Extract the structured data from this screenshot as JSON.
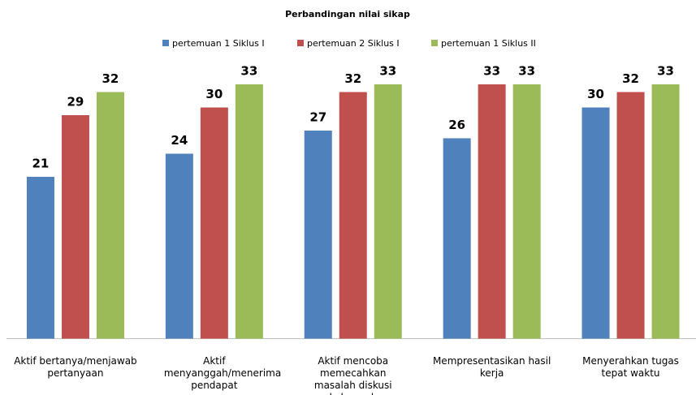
{
  "chart_data": {
    "type": "bar",
    "title": "Perbandingan nilai sikap",
    "categories": [
      "Aktif bertanya/menjawab pertanyaan",
      "Aktif menyanggah/menerima pendapat",
      "Aktif mencoba memecahkan masalah diskusi kelompok",
      "Mempresentasikan hasil kerja",
      "Menyerahkan tugas tepat waktu"
    ],
    "series": [
      {
        "name": "pertemuan 1 Siklus I",
        "color": "#4f81bd",
        "values": [
          21,
          24,
          27,
          26,
          30
        ]
      },
      {
        "name": "pertemuan 2 Siklus I",
        "color": "#c0504d",
        "values": [
          29,
          30,
          32,
          33,
          32
        ]
      },
      {
        "name": "pertemuan 1 Siklus II",
        "color": "#9bbb59",
        "values": [
          32,
          33,
          33,
          33,
          33
        ]
      }
    ],
    "ylim": [
      0,
      35
    ],
    "legend": "top"
  }
}
